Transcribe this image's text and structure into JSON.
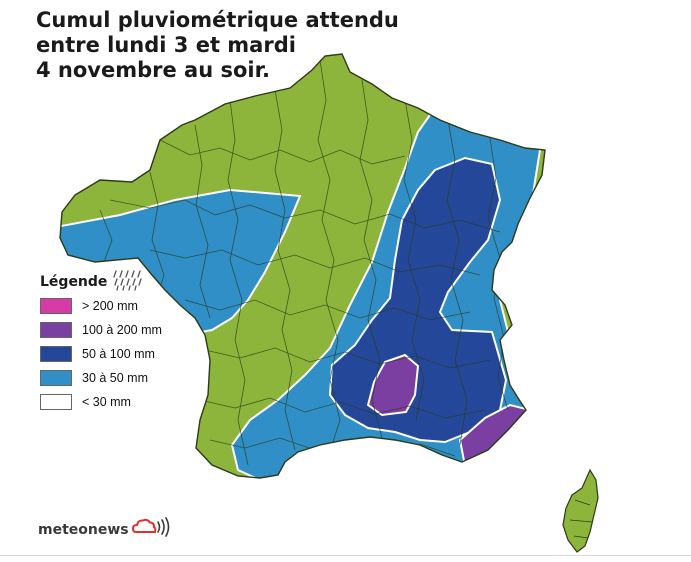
{
  "title": {
    "line1": "Cumul pluviométrique attendu",
    "line2": "entre lundi  3 et mardi",
    "line3": "4 novembre au soir."
  },
  "legend": {
    "title": "Légende",
    "icon": "rain-drops-icon",
    "items": [
      {
        "label": "> 200 mm",
        "color": "#d63ba6"
      },
      {
        "label": "100 à 200 mm",
        "color": "#7a3fa0"
      },
      {
        "label": "50 à 100 mm",
        "color": "#24479a"
      },
      {
        "label": "30 à 50 mm",
        "color": "#2f8fc6"
      },
      {
        "label": "< 30 mm",
        "color": "#ffffff"
      }
    ]
  },
  "brand": {
    "name": "meteonews",
    "icon": "cloud-signal-icon",
    "color": "#e0312b"
  },
  "colors": {
    "land_dry": "#8db53b",
    "borders": "#2b3a17"
  }
}
